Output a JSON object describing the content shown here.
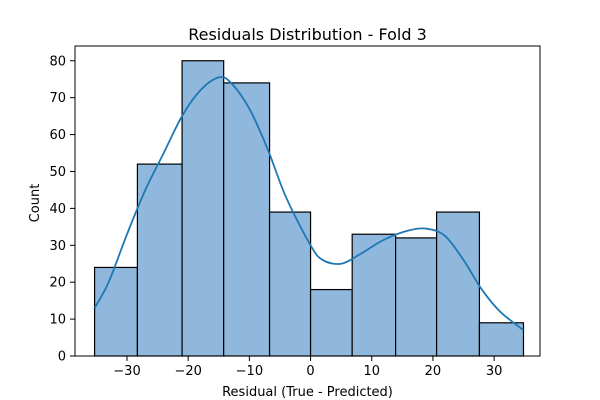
{
  "chart_data": {
    "type": "bar",
    "title": "Residuals Distribution - Fold 3",
    "xlabel": "Residual (True - Predicted)",
    "ylabel": "Count",
    "xlim": [
      -38.5,
      37.5
    ],
    "ylim": [
      0,
      84
    ],
    "x_ticks": [
      -30,
      -20,
      -10,
      0,
      10,
      20,
      30
    ],
    "x_tick_labels": [
      "−30",
      "−20",
      "−10",
      "0",
      "10",
      "20",
      "30"
    ],
    "y_ticks": [
      0,
      10,
      20,
      30,
      40,
      50,
      60,
      70,
      80
    ],
    "y_tick_labels": [
      "0",
      "10",
      "20",
      "30",
      "40",
      "50",
      "60",
      "70",
      "80"
    ],
    "bins": [
      {
        "start": -35.3,
        "end": -28.3,
        "count": 24
      },
      {
        "start": -28.3,
        "end": -21.0,
        "count": 52
      },
      {
        "start": -21.0,
        "end": -14.2,
        "count": 80
      },
      {
        "start": -14.2,
        "end": -6.7,
        "count": 74
      },
      {
        "start": -6.7,
        "end": 0.0,
        "count": 39
      },
      {
        "start": 0.0,
        "end": 6.8,
        "count": 18
      },
      {
        "start": 6.8,
        "end": 13.9,
        "count": 33
      },
      {
        "start": 13.9,
        "end": 20.6,
        "count": 32
      },
      {
        "start": 20.6,
        "end": 27.6,
        "count": 39
      },
      {
        "start": 27.6,
        "end": 34.8,
        "count": 9
      }
    ],
    "kde": {
      "x": [
        -35.3,
        -33.0,
        -30.0,
        -27.0,
        -24.0,
        -21.0,
        -18.0,
        -15.0,
        -13.0,
        -10.0,
        -7.0,
        -4.0,
        0.0,
        2.0,
        5.0,
        8.0,
        12.0,
        16.0,
        19.0,
        22.0,
        25.0,
        28.0,
        31.0,
        34.8
      ],
      "y": [
        13,
        20,
        33,
        45,
        55,
        65,
        72,
        75.5,
        74,
        67,
        56,
        43,
        30,
        26,
        25,
        27.5,
        31.5,
        34,
        34.5,
        32.5,
        26,
        18,
        12,
        7
      ]
    },
    "colors": {
      "bar_fill": "#8fb8dc",
      "bar_edge": "#000000",
      "kde_line": "#1f77b4",
      "axis": "#000000",
      "background": "#ffffff"
    },
    "grid": false,
    "legend": "none"
  }
}
